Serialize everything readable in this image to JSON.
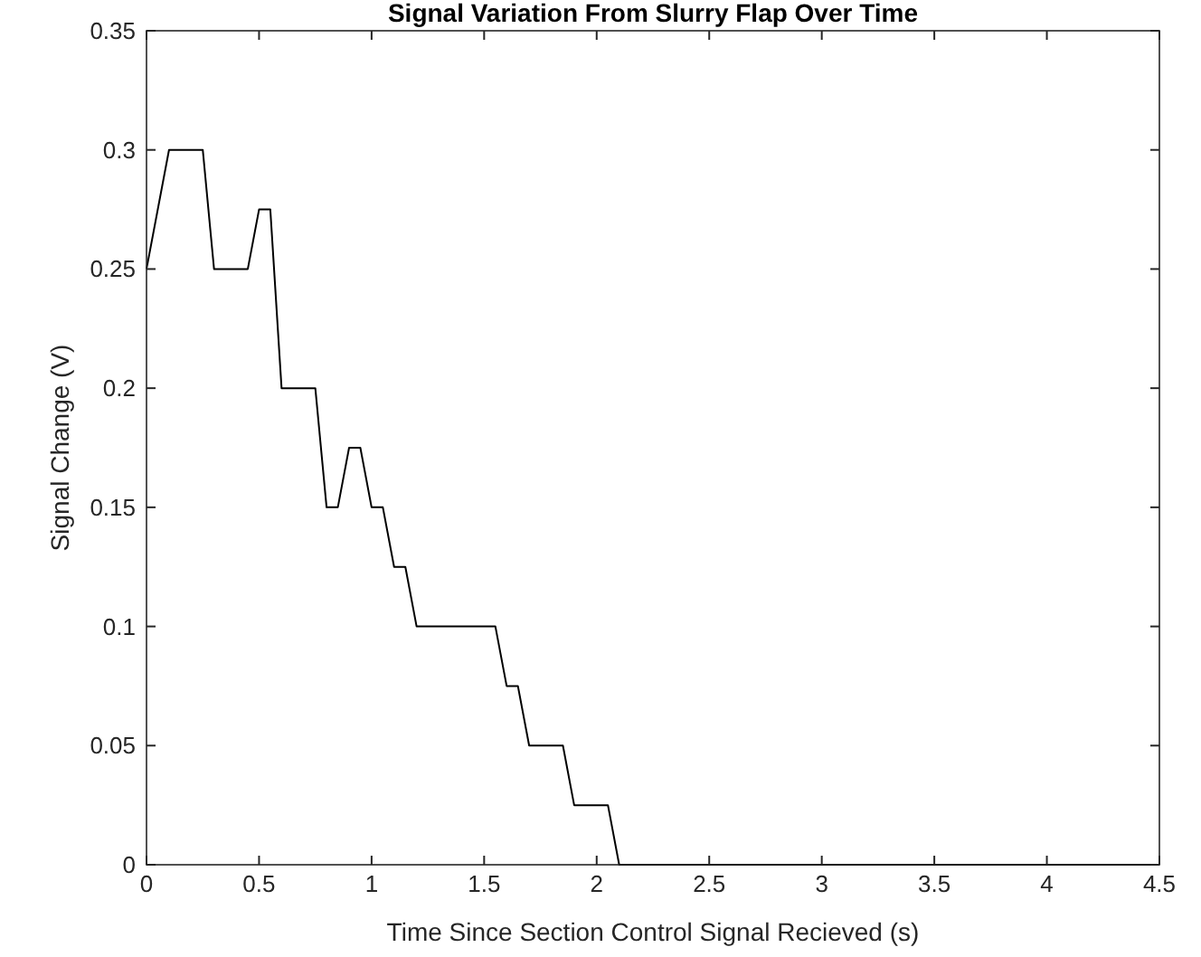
{
  "chart_data": {
    "type": "line",
    "title": "Signal Variation From Slurry Flap Over Time",
    "xlabel": "Time Since Section Control Signal Recieved (s)",
    "ylabel": "Signal Change (V)",
    "series": [
      {
        "color": "#000000",
        "x": [
          0,
          0.1,
          0.25,
          0.3,
          0.45,
          0.5,
          0.55,
          0.6,
          0.75,
          0.8,
          0.85,
          0.9,
          0.95,
          1.0,
          1.05,
          1.1,
          1.15,
          1.2,
          1.55,
          1.6,
          1.65,
          1.7,
          1.85,
          1.9,
          2.05,
          2.1,
          4.5
        ],
        "values": [
          0.25,
          0.3,
          0.3,
          0.25,
          0.25,
          0.275,
          0.275,
          0.2,
          0.2,
          0.15,
          0.15,
          0.175,
          0.175,
          0.15,
          0.15,
          0.125,
          0.125,
          0.1,
          0.1,
          0.075,
          0.075,
          0.05,
          0.05,
          0.025,
          0.025,
          0,
          0
        ]
      }
    ],
    "xlim": [
      0,
      4.5
    ],
    "xticks": [
      0,
      0.5,
      1,
      1.5,
      2,
      2.5,
      3,
      3.5,
      4,
      4.5
    ],
    "ylim": [
      0,
      0.35
    ],
    "yticks": [
      0,
      0.05,
      0.1,
      0.15,
      0.2,
      0.25,
      0.3,
      0.35
    ],
    "grid": false,
    "marker": "none",
    "line_style": "solid"
  }
}
